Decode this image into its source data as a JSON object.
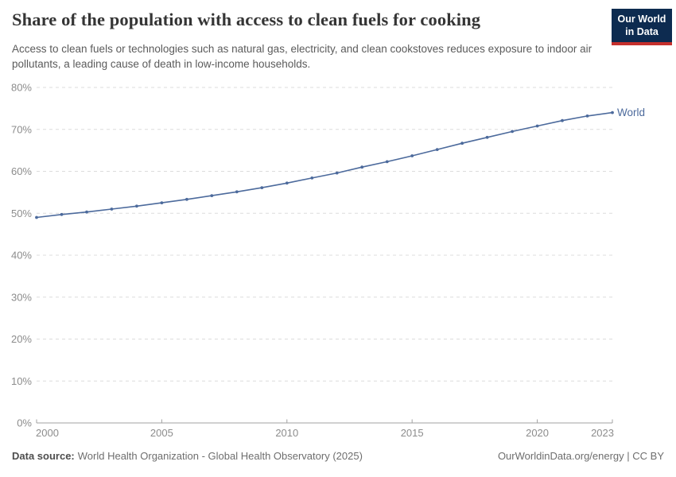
{
  "header": {
    "title": "Share of the population with access to clean fuels for cooking",
    "subtitle": "Access to clean fuels or technologies such as natural gas, electricity, and clean cookstoves reduces exposure to indoor air pollutants, a leading cause of death in low-income households.",
    "logo": {
      "line1": "Our World",
      "line2": "in Data",
      "bg_color": "#0d2b50",
      "stripe_color": "#c5302d"
    }
  },
  "footer": {
    "source_label": "Data source:",
    "source_text": "World Health Organization - Global Health Observatory (2025)",
    "link_text": "OurWorldinData.org/energy | CC BY"
  },
  "chart_data": {
    "type": "line",
    "title": "Share of the population with access to clean fuels for cooking",
    "xlabel": "",
    "ylabel": "",
    "x": [
      2000,
      2001,
      2002,
      2003,
      2004,
      2005,
      2006,
      2007,
      2008,
      2009,
      2010,
      2011,
      2012,
      2013,
      2014,
      2015,
      2016,
      2017,
      2018,
      2019,
      2020,
      2021,
      2022,
      2023
    ],
    "series": [
      {
        "name": "World",
        "color": "#4C6A9C",
        "values": [
          49.0,
          49.7,
          50.3,
          51.0,
          51.7,
          52.5,
          53.3,
          54.2,
          55.1,
          56.1,
          57.2,
          58.4,
          59.6,
          61.0,
          62.3,
          63.7,
          65.2,
          66.7,
          68.1,
          69.5,
          70.8,
          72.1,
          73.2,
          74.0
        ]
      }
    ],
    "unit": "%",
    "xlim": [
      2000,
      2023
    ],
    "ylim": [
      0,
      80
    ],
    "yticks": [
      0,
      10,
      20,
      30,
      40,
      50,
      60,
      70,
      80
    ],
    "xticks": [
      2000,
      2005,
      2010,
      2015,
      2020,
      2023
    ],
    "grid": "horizontal-dashed",
    "legend": "end-of-line-label",
    "colors": {
      "grid": "#dcdcdc",
      "axis": "#a1a1a1",
      "tick_label": "#8c8c8c",
      "series_label": "#4C6A9C"
    }
  }
}
